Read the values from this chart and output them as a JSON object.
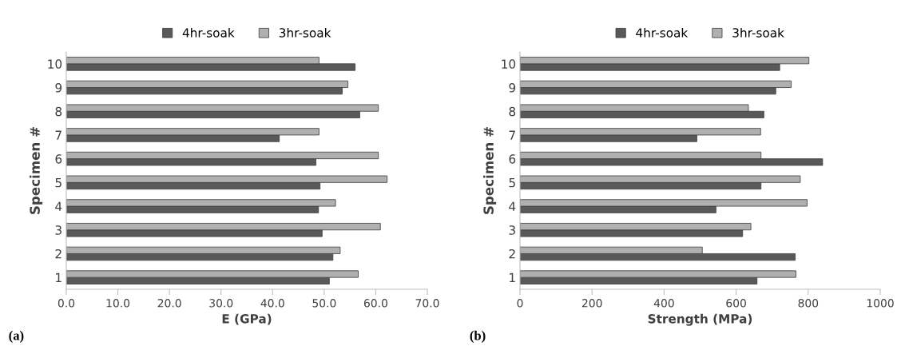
{
  "chart_data": [
    {
      "type": "bar",
      "orientation": "horizontal",
      "xlabel": "E (GPa)",
      "ylabel": "Specimen #",
      "categories": [
        "10",
        "9",
        "8",
        "7",
        "6",
        "5",
        "4",
        "3",
        "2",
        "1"
      ],
      "series": [
        {
          "name": "4hr-soak",
          "color": "#595959",
          "values": [
            56.0,
            53.5,
            56.9,
            41.3,
            48.4,
            49.2,
            48.9,
            49.6,
            51.7,
            51.0
          ]
        },
        {
          "name": "3hr-soak",
          "color": "#b0b0b0",
          "values": [
            49.0,
            54.6,
            60.5,
            49.0,
            60.5,
            62.2,
            52.2,
            60.9,
            53.1,
            56.6
          ]
        }
      ],
      "xlim": [
        0,
        70
      ],
      "xticks": [
        {
          "value": 0,
          "label": "0.0"
        },
        {
          "value": 10,
          "label": "10.0"
        },
        {
          "value": 20,
          "label": "20.0"
        },
        {
          "value": 30,
          "label": "30.0"
        },
        {
          "value": 40,
          "label": "40.0"
        },
        {
          "value": 50,
          "label": "50.0"
        },
        {
          "value": 60,
          "label": "60.0"
        },
        {
          "value": 70,
          "label": "70.0"
        }
      ],
      "grid": false,
      "legend": "top",
      "annotations": [
        "(a)"
      ]
    },
    {
      "type": "bar",
      "orientation": "horizontal",
      "xlabel": "Strength (MPa)",
      "ylabel": "Specimen #",
      "categories": [
        "10",
        "9",
        "8",
        "7",
        "6",
        "5",
        "4",
        "3",
        "2",
        "1"
      ],
      "series": [
        {
          "name": "4hr-soak",
          "color": "#595959",
          "values": [
            721,
            710,
            677,
            491,
            840,
            669,
            544,
            618,
            764,
            658
          ]
        },
        {
          "name": "3hr-soak",
          "color": "#b0b0b0",
          "values": [
            802,
            753,
            634,
            668,
            669,
            778,
            797,
            641,
            506,
            766
          ]
        }
      ],
      "xlim": [
        0,
        1000
      ],
      "xticks": [
        0,
        200,
        400,
        600,
        800,
        1000
      ],
      "grid": false,
      "legend": "top",
      "annotations": [
        "(b)"
      ]
    }
  ]
}
